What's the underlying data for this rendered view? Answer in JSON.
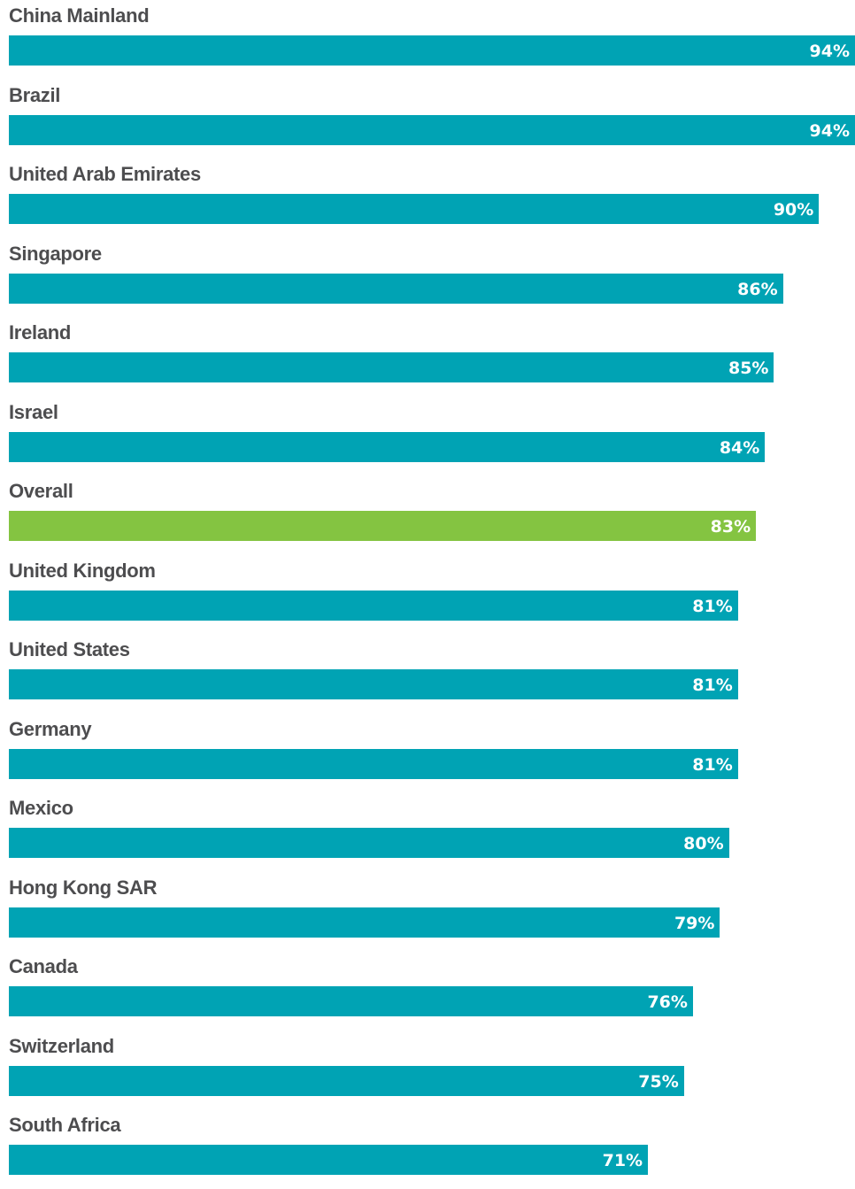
{
  "chart_data": {
    "type": "bar",
    "orientation": "horizontal",
    "categories": [
      "China Mainland",
      "Brazil",
      "United Arab Emirates",
      "Singapore",
      "Ireland",
      "Israel",
      "Overall",
      "United Kingdom",
      "United States",
      "Germany",
      "Mexico",
      "Hong Kong SAR",
      "Canada",
      "Switzerland",
      "South Africa"
    ],
    "values": [
      94,
      94,
      90,
      86,
      85,
      84,
      83,
      81,
      81,
      81,
      80,
      79,
      76,
      75,
      71
    ],
    "value_labels": [
      "94%",
      "94%",
      "90%",
      "86%",
      "85%",
      "84%",
      "83%",
      "81%",
      "81%",
      "81%",
      "80%",
      "79%",
      "76%",
      "75%",
      "71%"
    ],
    "unit": "%",
    "colors": {
      "default": "#00a3b4",
      "highlight": "#84c441"
    },
    "highlight_category": "Overall",
    "grid": false,
    "legend": "none"
  }
}
